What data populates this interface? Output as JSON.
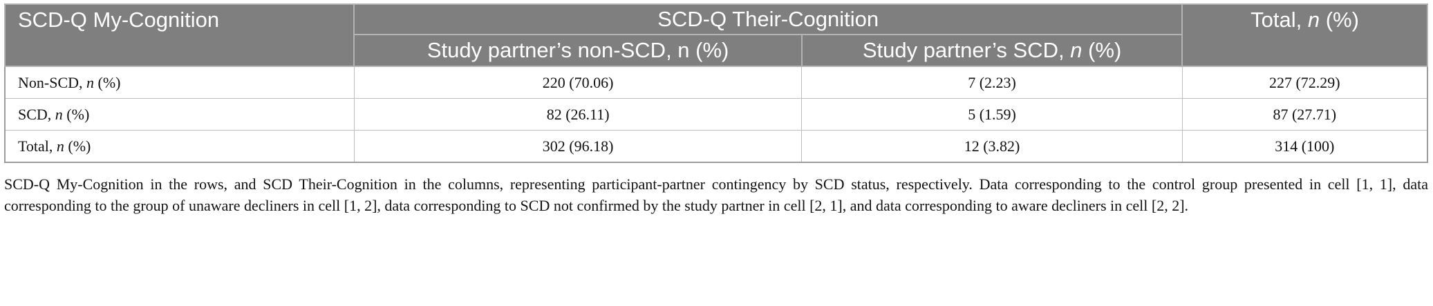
{
  "header": {
    "col1": "SCD-Q My-Cognition",
    "group": "SCD-Q Their-Cognition",
    "sub1": "Study partner’s non-SCD, n (%)",
    "sub2_prefix": "Study partner’s SCD, ",
    "sub2_italic": "n",
    "sub2_suffix": " (%)",
    "total_prefix": "Total, ",
    "total_italic": "n",
    "total_suffix": " (%)"
  },
  "rows": [
    {
      "label_prefix": "Non-SCD, ",
      "label_italic": "n",
      "label_suffix": " (%)",
      "c1": "220 (70.06)",
      "c2": "7 (2.23)",
      "c3": "227 (72.29)"
    },
    {
      "label_prefix": "SCD, ",
      "label_italic": "n",
      "label_suffix": " (%)",
      "c1": "82 (26.11)",
      "c2": "5 (1.59)",
      "c3": "87 (27.71)"
    },
    {
      "label_prefix": "Total, ",
      "label_italic": "n",
      "label_suffix": " (%)",
      "c1": "302 (96.18)",
      "c2": "12 (3.82)",
      "c3": "314 (100)"
    }
  ],
  "footnote": "SCD-Q My-Cognition in the rows, and SCD Their-Cognition in the columns, representing participant-partner contingency by SCD status, respectively. Data corresponding to the control group presented in cell [1, 1], data corresponding to the group of unaware decliners in cell [1, 2], data corresponding to SCD not confirmed by the study partner in cell [2, 1], and data corresponding to aware decliners in cell [2, 2]."
}
